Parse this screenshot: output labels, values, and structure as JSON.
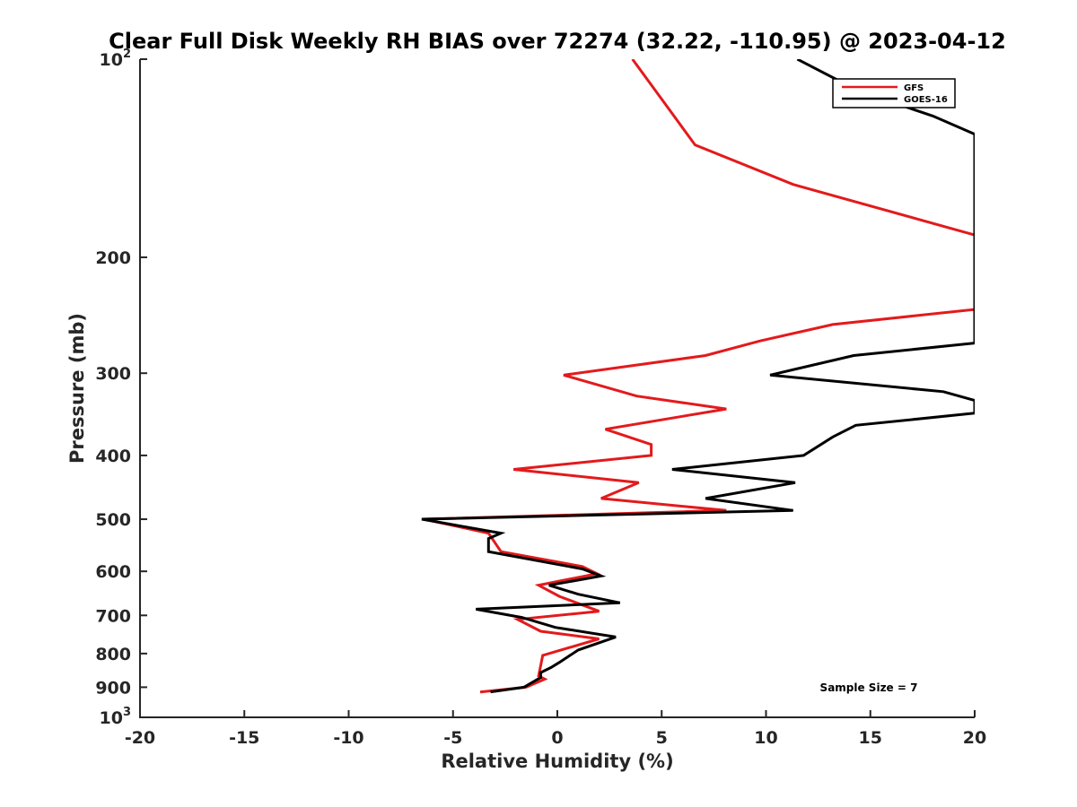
{
  "chart_data": {
    "type": "line",
    "title": "Clear Full Disk Weekly RH BIAS over 72274 (32.22, -110.95) @ 2023-04-12",
    "xlabel": "Relative Humidity (%)",
    "ylabel": "Pressure (mb)",
    "xlim": [
      -20,
      20
    ],
    "ylim": [
      100,
      1000
    ],
    "y_scale": "log",
    "y_reversed": true,
    "x_ticks": [
      -20,
      -15,
      -10,
      -5,
      0,
      5,
      10,
      15,
      20
    ],
    "x_tick_labels": [
      "-20",
      "-15",
      "-10",
      "-5",
      "0",
      "5",
      "10",
      "15",
      "20"
    ],
    "y_ticks": [
      100,
      200,
      300,
      400,
      500,
      600,
      700,
      800,
      900,
      1000
    ],
    "y_tick_labels": [
      "10^2",
      "200",
      "300",
      "400",
      "500",
      "600",
      "700",
      "800",
      "900",
      "10^3"
    ],
    "grid": false,
    "legend_position": "top-right",
    "annotation": "Sample Size = 7",
    "series": [
      {
        "name": "GFS",
        "color": "#e31a1c",
        "points": [
          [
            3.6,
            100
          ],
          [
            5.0,
            115
          ],
          [
            6.6,
            135
          ],
          [
            11.3,
            155
          ],
          [
            20.0,
            185
          ],
          [
            20.0,
            240
          ],
          [
            13.2,
            253
          ],
          [
            9.7,
            268
          ],
          [
            7.1,
            282
          ],
          [
            0.3,
            302
          ],
          [
            3.8,
            325
          ],
          [
            8.1,
            340
          ],
          [
            2.3,
            365
          ],
          [
            4.5,
            385
          ],
          [
            4.5,
            400
          ],
          [
            -2.1,
            420
          ],
          [
            3.9,
            440
          ],
          [
            2.1,
            465
          ],
          [
            8.1,
            485
          ],
          [
            -6.4,
            500
          ],
          [
            -3.3,
            525
          ],
          [
            -2.7,
            560
          ],
          [
            1.2,
            590
          ],
          [
            1.9,
            605
          ],
          [
            -0.9,
            630
          ],
          [
            0.1,
            655
          ],
          [
            2.0,
            690
          ],
          [
            -1.9,
            710
          ],
          [
            -0.8,
            740
          ],
          [
            2.0,
            760
          ],
          [
            -0.7,
            805
          ],
          [
            -0.8,
            835
          ],
          [
            -0.9,
            865
          ],
          [
            -0.6,
            875
          ],
          [
            -1.5,
            900
          ],
          [
            -3.7,
            915
          ]
        ]
      },
      {
        "name": "GOES-16",
        "color": "#000000",
        "points": [
          [
            11.5,
            100
          ],
          [
            14.5,
            112
          ],
          [
            18.0,
            122
          ],
          [
            20.0,
            130
          ],
          [
            20.0,
            270
          ],
          [
            14.2,
            282
          ],
          [
            10.2,
            302
          ],
          [
            18.5,
            320
          ],
          [
            20.0,
            330
          ],
          [
            20.0,
            345
          ],
          [
            14.3,
            360
          ],
          [
            13.2,
            375
          ],
          [
            11.8,
            400
          ],
          [
            5.5,
            420
          ],
          [
            11.4,
            440
          ],
          [
            7.1,
            465
          ],
          [
            11.3,
            485
          ],
          [
            -6.5,
            500
          ],
          [
            -2.7,
            525
          ],
          [
            -3.3,
            535
          ],
          [
            -3.3,
            560
          ],
          [
            1.2,
            595
          ],
          [
            2.1,
            610
          ],
          [
            -0.4,
            630
          ],
          [
            1.0,
            650
          ],
          [
            3.0,
            670
          ],
          [
            -3.9,
            685
          ],
          [
            -1.7,
            705
          ],
          [
            -0.1,
            730
          ],
          [
            2.8,
            755
          ],
          [
            1.0,
            790
          ],
          [
            0.1,
            825
          ],
          [
            -0.3,
            840
          ],
          [
            -0.8,
            855
          ],
          [
            -0.8,
            870
          ],
          [
            -1.6,
            900
          ],
          [
            -3.2,
            915
          ]
        ]
      }
    ]
  }
}
